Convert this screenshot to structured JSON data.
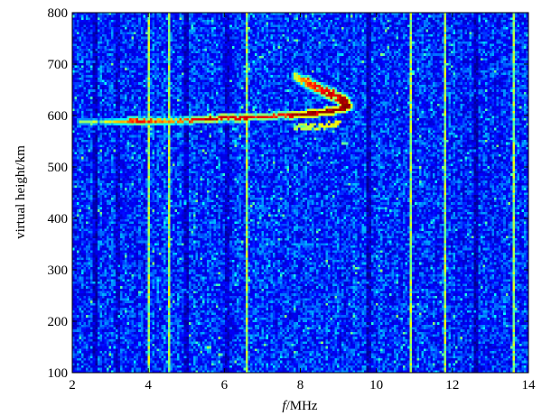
{
  "chart_data": {
    "type": "heatmap",
    "title": "",
    "xlabel_italic": "f",
    "xlabel_rest": "/MHz",
    "ylabel": "virtual height/km",
    "xlim": [
      2,
      14
    ],
    "ylim": [
      100,
      800
    ],
    "x_ticks": [
      "2",
      "4",
      "6",
      "8",
      "10",
      "12",
      "14"
    ],
    "y_ticks": [
      "100",
      "200",
      "300",
      "400",
      "500",
      "600",
      "700",
      "800"
    ],
    "colormap": [
      "#00008f",
      "#0000ff",
      "#00ffff",
      "#ffff00",
      "#ff0000",
      "#800000"
    ],
    "background_noise_level": 0.22,
    "vertical_interference_lines_MHz": [
      3.95,
      4.5,
      6.55,
      10.9,
      11.8,
      13.6
    ],
    "dark_frequency_bands_MHz": [
      2.6,
      3.2,
      5.0,
      6.1,
      9.8,
      12.6
    ],
    "echo_trace": [
      {
        "f": 2.2,
        "h": 588,
        "level": 0.55
      },
      {
        "f": 3.2,
        "h": 590,
        "level": 0.65
      },
      {
        "f": 3.7,
        "h": 591,
        "level": 0.85
      },
      {
        "f": 4.6,
        "h": 592,
        "level": 0.7
      },
      {
        "f": 5.5,
        "h": 595,
        "level": 0.95
      },
      {
        "f": 6.5,
        "h": 598,
        "level": 0.9
      },
      {
        "f": 7.5,
        "h": 602,
        "level": 0.85
      },
      {
        "f": 8.0,
        "h": 604,
        "level": 1.0
      },
      {
        "f": 8.5,
        "h": 608,
        "level": 1.0
      },
      {
        "f": 9.0,
        "h": 614,
        "level": 1.0
      },
      {
        "f": 9.25,
        "h": 620,
        "level": 1.0
      }
    ],
    "echo_spread_upper": [
      {
        "f": 7.8,
        "h": 680,
        "level": 0.6
      },
      {
        "f": 8.2,
        "h": 665,
        "level": 0.8
      },
      {
        "f": 8.6,
        "h": 650,
        "level": 0.9
      },
      {
        "f": 9.0,
        "h": 635,
        "level": 0.95
      },
      {
        "f": 9.2,
        "h": 625,
        "level": 1.0
      }
    ],
    "echo_spread_lower": [
      {
        "f": 7.8,
        "h": 582,
        "level": 0.55
      },
      {
        "f": 8.4,
        "h": 580,
        "level": 0.6
      },
      {
        "f": 9.0,
        "h": 588,
        "level": 0.65
      }
    ]
  }
}
